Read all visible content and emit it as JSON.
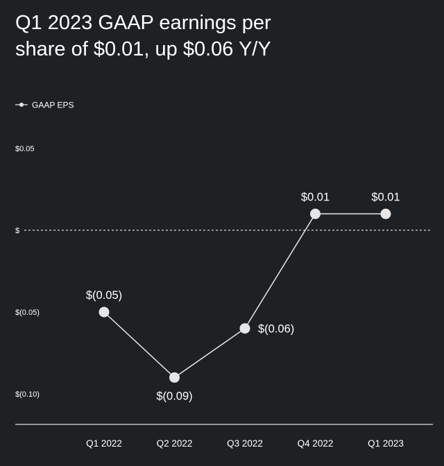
{
  "title_lines": [
    "Q1 2023 GAAP earnings per",
    "share of $0.01, up $0.06 Y/Y"
  ],
  "chart_data": {
    "type": "line",
    "categories": [
      "Q1 2022",
      "Q2 2022",
      "Q3 2022",
      "Q4 2022",
      "Q1 2023"
    ],
    "series": [
      {
        "name": "GAAP EPS",
        "values": [
          -0.05,
          -0.09,
          -0.06,
          0.01,
          0.01
        ],
        "labels": [
          "$(0.05)",
          "$(0.09)",
          "$(0.06)",
          "$0.01",
          "$0.01"
        ],
        "label_positions": [
          "above",
          "below",
          "right",
          "above",
          "above"
        ]
      }
    ],
    "yticks": [
      0.05,
      0,
      -0.05,
      -0.1
    ],
    "ytick_labels": [
      "$0.05",
      "$",
      "$(0.05)",
      "$(0.10)"
    ],
    "ylim": [
      -0.105,
      0.065
    ],
    "zero_line": "dashed",
    "grid": false,
    "legend": "top-left"
  },
  "colors": {
    "background": "#1e2124",
    "text": "#ffffff",
    "line": "#e8e8e8",
    "marker": "#e6e6e6"
  }
}
